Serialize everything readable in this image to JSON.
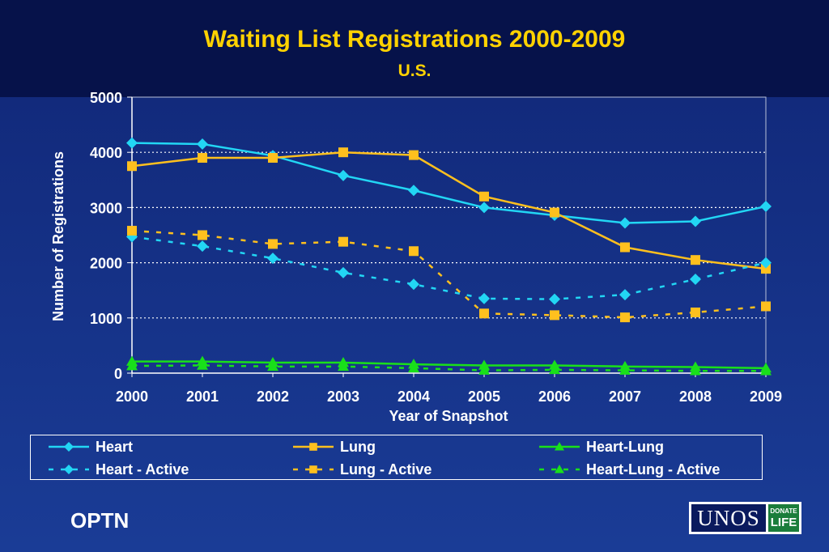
{
  "title": "Waiting List Registrations 2000-2009",
  "subtitle": "U.S.",
  "footer_left": "OPTN",
  "logo": {
    "main": "UNOS",
    "badge_line1": "DONATE",
    "badge_line2": "LIFE"
  },
  "colors": {
    "title": "#ffd200",
    "heart": "#22d6f4",
    "lung": "#ffc01e",
    "heart_lung": "#19e01a",
    "grid": "#ffffff",
    "text": "#ffffff"
  },
  "chart_data": {
    "type": "line",
    "title": "Waiting List Registrations 2000-2009",
    "subtitle": "U.S.",
    "xlabel": "Year of Snapshot",
    "ylabel": "Number of Registrations",
    "x": [
      "2000",
      "2001",
      "2002",
      "2003",
      "2004",
      "2005",
      "2006",
      "2007",
      "2008",
      "2009"
    ],
    "ylim": [
      0,
      5000
    ],
    "yticks": [
      0,
      1000,
      2000,
      3000,
      4000,
      5000
    ],
    "grid": "horizontal dotted",
    "legend_position": "bottom",
    "series": [
      {
        "name": "Heart",
        "color": "#22d6f4",
        "marker": "diamond",
        "dash": "solid",
        "values": [
          4170,
          4150,
          3940,
          3580,
          3310,
          3000,
          2860,
          2720,
          2750,
          3020
        ]
      },
      {
        "name": "Lung",
        "color": "#ffc01e",
        "marker": "square",
        "dash": "solid",
        "values": [
          3750,
          3900,
          3900,
          4000,
          3950,
          3200,
          2910,
          2280,
          2050,
          1890
        ]
      },
      {
        "name": "Heart-Lung",
        "color": "#19e01a",
        "marker": "triangle",
        "dash": "solid",
        "values": [
          210,
          210,
          190,
          190,
          160,
          140,
          140,
          120,
          110,
          90
        ]
      },
      {
        "name": "Heart - Active",
        "color": "#22d6f4",
        "marker": "diamond",
        "dash": "dashed",
        "values": [
          2470,
          2300,
          2080,
          1820,
          1610,
          1350,
          1340,
          1420,
          1700,
          2000
        ]
      },
      {
        "name": "Lung - Active",
        "color": "#ffc01e",
        "marker": "square",
        "dash": "dashed",
        "values": [
          2580,
          2500,
          2340,
          2380,
          2210,
          1080,
          1050,
          1010,
          1100,
          1210
        ]
      },
      {
        "name": "Heart-Lung - Active",
        "color": "#19e01a",
        "marker": "triangle",
        "dash": "dashed",
        "values": [
          130,
          140,
          120,
          120,
          90,
          50,
          60,
          50,
          40,
          40
        ]
      }
    ]
  }
}
